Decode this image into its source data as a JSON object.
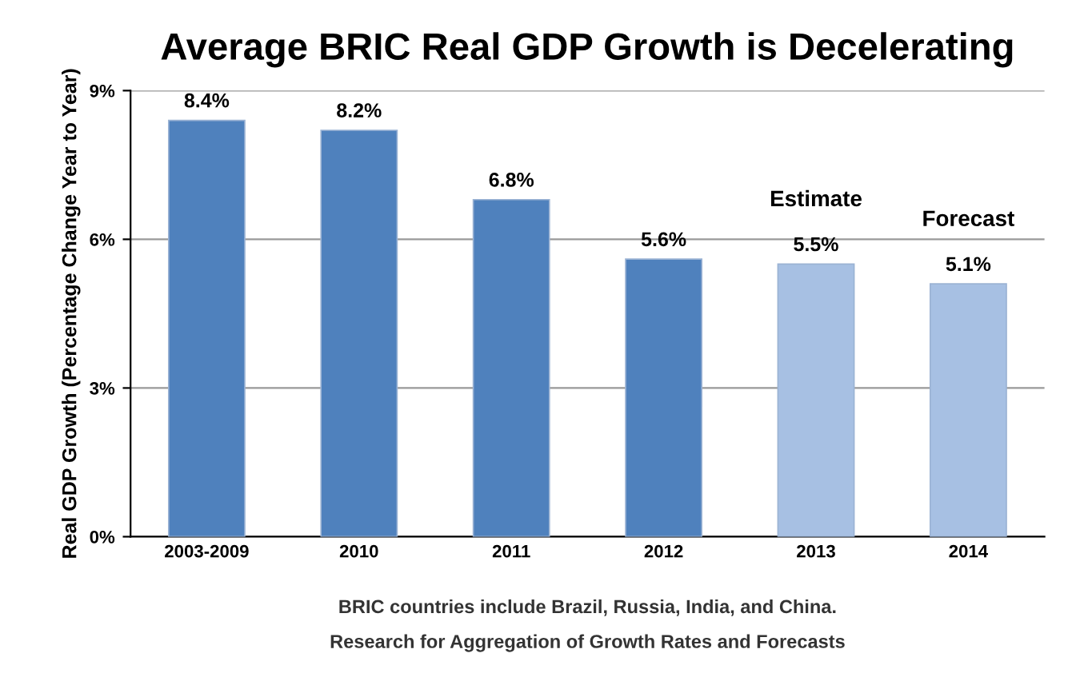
{
  "chart_data": {
    "type": "bar",
    "title": "Average BRIC Real GDP Growth is Decelerating",
    "ylabel": "Real GDP Growth (Percentage Change Year to Year)",
    "categories": [
      "2003-2009",
      "2010",
      "2011",
      "2012",
      "2013",
      "2014"
    ],
    "values": [
      8.4,
      8.2,
      6.8,
      5.6,
      5.5,
      5.1
    ],
    "colors": [
      "#4f81bd",
      "#4f81bd",
      "#4f81bd",
      "#4f81bd",
      "#a7c0e3",
      "#a7c0e3"
    ],
    "value_labels": [
      "8.4%",
      "8.2%",
      "6.8%",
      "5.6%",
      "5.5%",
      "5.1%"
    ],
    "ylim": [
      0,
      9
    ],
    "yticks": [
      {
        "value": 0,
        "label": "0%"
      },
      {
        "value": 3,
        "label": "3%"
      },
      {
        "value": 6,
        "label": "6%"
      },
      {
        "value": 9,
        "label": "9%"
      }
    ],
    "grid": "y",
    "annotations": [
      "Estimate",
      "Forecast",
      "BRIC countries include Brazil, Russia, India, and China.",
      "Research for Aggregation of Growth Rates and Forecasts"
    ]
  }
}
